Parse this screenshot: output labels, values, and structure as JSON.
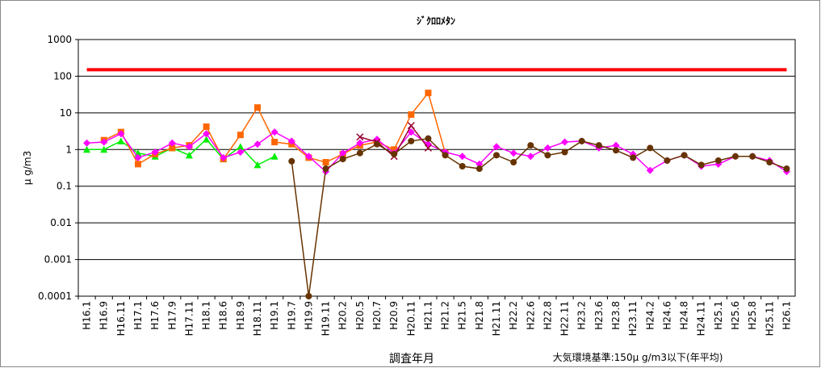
{
  "chart_data": {
    "type": "line",
    "title": "ｼﾞｸﾛﾛﾒﾀﾝ",
    "y_label": "μ g/m3",
    "x_label": "調査年月",
    "annotation": "大気環境基準:150μ g/m3以下(年平均)",
    "log_y": true,
    "grid": true,
    "ylim": [
      0.0001,
      1000
    ],
    "yticks": [
      0.0001,
      0.001,
      0.01,
      0.1,
      1,
      10,
      100,
      1000
    ],
    "reference_line": {
      "value": 150,
      "color": "#ff0000"
    },
    "categories": [
      "H16.1",
      "H16.9",
      "H16.11",
      "H17.1",
      "H17.6",
      "H17.9",
      "H17.11",
      "H18.1",
      "H18.6",
      "H18.9",
      "H18.11",
      "H19.1",
      "H19.7",
      "H19.9",
      "H19.11",
      "H20.2",
      "H20.5",
      "H20.7",
      "H20.9",
      "H20.11",
      "H21.1",
      "H21.2",
      "H21.5",
      "H21.8",
      "H21.11",
      "H22.2",
      "H22.6",
      "H22.8",
      "H22.11",
      "H23.2",
      "H23.6",
      "H23.8",
      "H23.11",
      "H24.2",
      "H24.6",
      "H24.8",
      "H24.11",
      "H25.1",
      "H25.6",
      "H25.8",
      "H25.11",
      "H26.1"
    ],
    "series": [
      {
        "color": "#00ee00",
        "marker": "triangle",
        "values": [
          1.0,
          1.0,
          1.7,
          0.8,
          0.65,
          1.1,
          0.7,
          1.9,
          0.55,
          1.2,
          0.38,
          0.65,
          null,
          null,
          null,
          null,
          null,
          null,
          null,
          null,
          null,
          null,
          null,
          null,
          null,
          null,
          null,
          null,
          null,
          null,
          null,
          null,
          null,
          null,
          null,
          null,
          null,
          null,
          null,
          null,
          null,
          null
        ]
      },
      {
        "color": "#ff6600",
        "marker": "square",
        "values": [
          null,
          1.8,
          3.0,
          0.4,
          0.75,
          1.1,
          1.3,
          4.2,
          0.55,
          2.5,
          14,
          1.6,
          1.4,
          0.6,
          0.45,
          0.75,
          1.3,
          1.6,
          1.0,
          9,
          35,
          0.8,
          null,
          null,
          null,
          null,
          null,
          null,
          null,
          null,
          null,
          null,
          null,
          null,
          null,
          null,
          null,
          null,
          null,
          null,
          null,
          null
        ]
      },
      {
        "color": "#ff00ff",
        "marker": "diamond",
        "values": [
          1.5,
          1.6,
          2.7,
          0.6,
          0.85,
          1.5,
          1.2,
          2.7,
          0.6,
          0.85,
          1.4,
          3.0,
          1.7,
          0.65,
          0.25,
          0.8,
          1.5,
          1.9,
          0.8,
          3.0,
          1.4,
          0.85,
          0.65,
          0.4,
          1.2,
          0.8,
          0.65,
          1.1,
          1.6,
          1.7,
          1.1,
          1.3,
          0.75,
          0.27,
          0.5,
          0.7,
          0.35,
          0.4,
          0.65,
          0.65,
          0.5,
          0.25
        ]
      },
      {
        "color": "#990033",
        "marker": "cross",
        "values": [
          null,
          null,
          null,
          null,
          null,
          null,
          null,
          null,
          null,
          null,
          null,
          null,
          null,
          null,
          null,
          null,
          2.2,
          1.6,
          0.65,
          4.5,
          1.1,
          null,
          null,
          null,
          null,
          null,
          null,
          null,
          null,
          null,
          null,
          null,
          null,
          null,
          null,
          null,
          null,
          null,
          null,
          null,
          null,
          null
        ]
      },
      {
        "color": "#663300",
        "marker": "circle",
        "values": [
          null,
          null,
          null,
          null,
          null,
          null,
          null,
          null,
          null,
          null,
          null,
          null,
          0.48,
          0.0001,
          0.3,
          0.55,
          0.8,
          1.4,
          0.75,
          1.7,
          2.0,
          0.7,
          0.35,
          0.3,
          0.7,
          0.45,
          1.3,
          0.7,
          0.85,
          1.7,
          1.3,
          0.95,
          0.6,
          1.1,
          0.5,
          0.7,
          0.38,
          0.5,
          0.65,
          0.65,
          0.45,
          0.3
        ]
      }
    ]
  }
}
